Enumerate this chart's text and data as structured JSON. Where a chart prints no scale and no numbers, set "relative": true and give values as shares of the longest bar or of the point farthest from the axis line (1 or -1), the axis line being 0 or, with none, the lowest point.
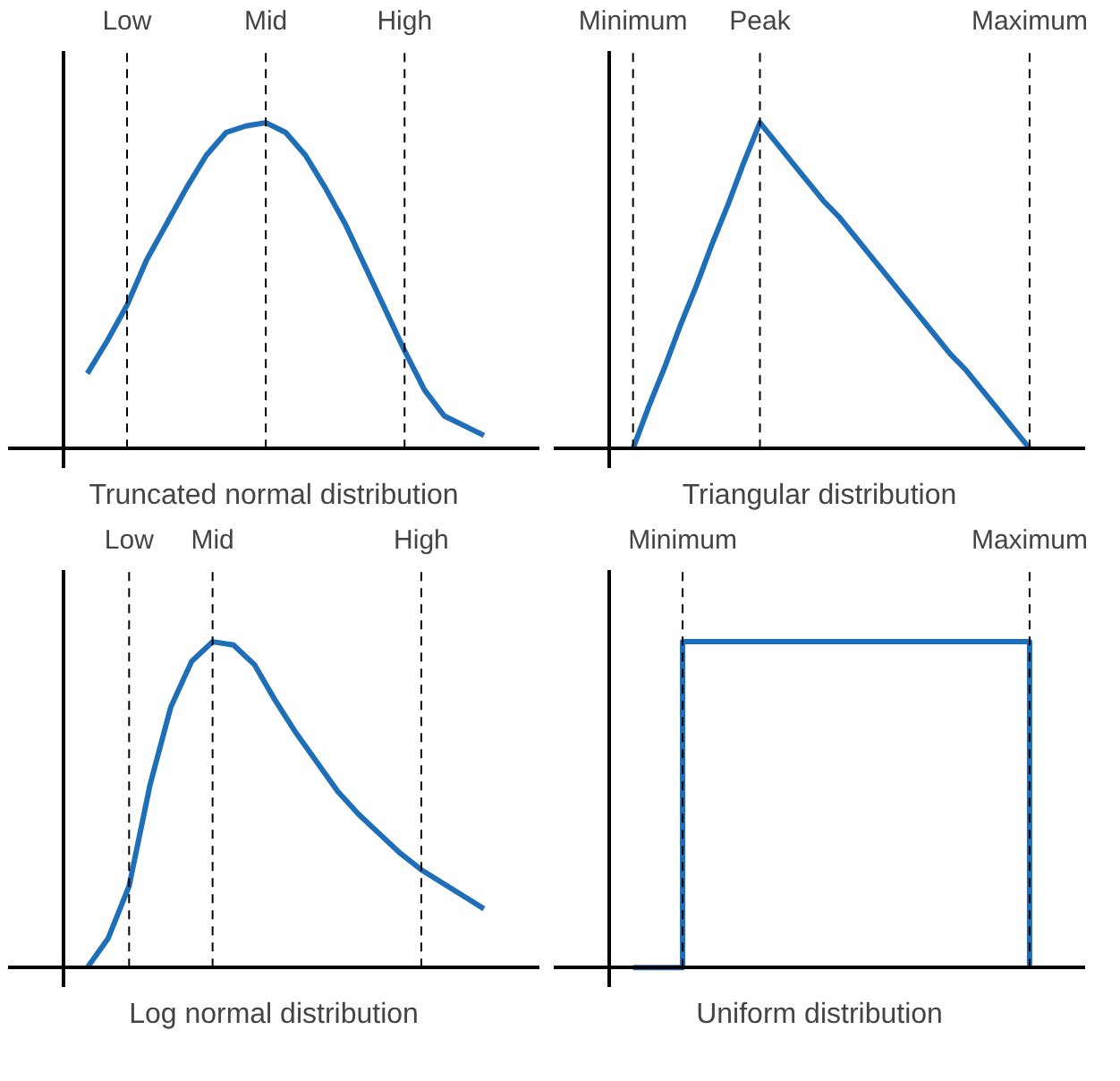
{
  "chart_data": [
    {
      "type": "line",
      "title": "Truncated normal distribution",
      "relative": true,
      "categories": [
        null,
        null,
        "Low",
        null,
        null,
        null,
        null,
        null,
        null,
        "Mid",
        null,
        null,
        null,
        null,
        null,
        null,
        "High",
        null,
        null,
        null,
        null
      ],
      "series": [
        {
          "color": "#1f6fb8",
          "values": [
            0.23,
            0.33,
            0.44,
            0.58,
            0.69,
            0.8,
            0.9,
            0.97,
            0.99,
            1.0,
            0.97,
            0.9,
            0.8,
            0.69,
            0.56,
            0.43,
            0.3,
            0.18,
            0.1,
            0.07,
            0.04
          ]
        }
      ],
      "ref_lines": [
        {
          "axis": "x",
          "value": "Low",
          "line_style": "dashed"
        },
        {
          "axis": "x",
          "value": "Mid",
          "line_style": "dashed"
        },
        {
          "axis": "x",
          "value": "High",
          "line_style": "dashed"
        }
      ]
    },
    {
      "type": "line",
      "title": "Triangular distribution",
      "relative": true,
      "categories": [
        "Minimum",
        null,
        null,
        null,
        null,
        null,
        null,
        null,
        "Peak",
        null,
        null,
        null,
        null,
        null,
        null,
        null,
        null,
        null,
        null,
        null,
        null,
        null,
        null,
        null,
        null,
        "Maximum"
      ],
      "series": [
        {
          "color": "#1f6fb8",
          "values": [
            0,
            0.13,
            0.25,
            0.38,
            0.5,
            0.63,
            0.75,
            0.88,
            1.0,
            0.94,
            0.88,
            0.82,
            0.76,
            0.71,
            0.65,
            0.59,
            0.53,
            0.47,
            0.41,
            0.35,
            0.29,
            0.24,
            0.18,
            0.12,
            0.06,
            0
          ]
        }
      ],
      "ref_lines": [
        {
          "axis": "x",
          "value": "Minimum",
          "line_style": "dashed"
        },
        {
          "axis": "x",
          "value": "Peak",
          "line_style": "dashed"
        },
        {
          "axis": "x",
          "value": "Maximum",
          "line_style": "dashed"
        }
      ]
    },
    {
      "type": "line",
      "title": "Log normal distribution",
      "relative": true,
      "categories": [
        null,
        null,
        "Low",
        null,
        null,
        null,
        "Mid",
        null,
        null,
        null,
        null,
        null,
        null,
        null,
        null,
        null,
        "High",
        null,
        null,
        null
      ],
      "series": [
        {
          "color": "#1f6fb8",
          "values": [
            0,
            0.09,
            0.25,
            0.56,
            0.8,
            0.94,
            1.0,
            0.99,
            0.93,
            0.82,
            0.72,
            0.63,
            0.54,
            0.47,
            0.41,
            0.35,
            0.3,
            0.26,
            0.22,
            0.18
          ]
        }
      ],
      "ref_lines": [
        {
          "axis": "x",
          "value": "Low",
          "line_style": "dashed"
        },
        {
          "axis": "x",
          "value": "Mid",
          "line_style": "dashed"
        },
        {
          "axis": "x",
          "value": "High",
          "line_style": "dashed"
        }
      ]
    },
    {
      "type": "step",
      "title": "Uniform distribution",
      "relative": true,
      "categories": [
        null,
        "Minimum",
        null,
        null,
        null,
        null,
        null,
        null,
        "Maximum"
      ],
      "series": [
        {
          "color": "#1f6fb8",
          "values": [
            0,
            1,
            1,
            1,
            1,
            1,
            1,
            1,
            0
          ]
        }
      ],
      "ref_lines": [
        {
          "axis": "x",
          "value": "Minimum",
          "line_style": "dashed"
        },
        {
          "axis": "x",
          "value": "Maximum",
          "line_style": "dashed"
        }
      ]
    }
  ]
}
